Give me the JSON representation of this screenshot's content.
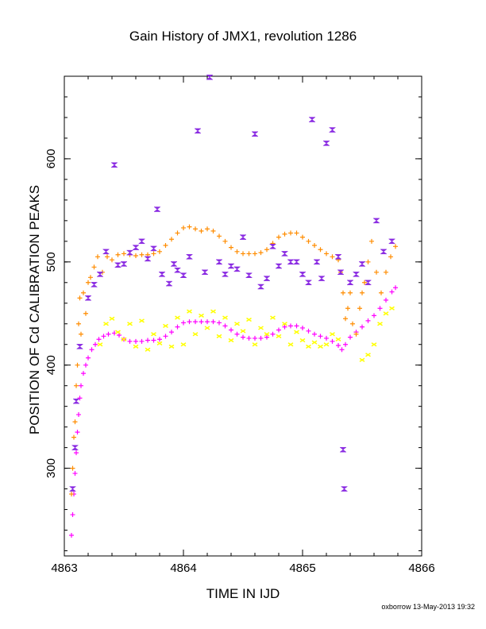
{
  "credit": "oxborrow 13-May-2013 19:32",
  "chart_data": {
    "type": "scatter",
    "title": "Gain History of JMX1, revolution 1286",
    "xlabel": "TIME IN IJD",
    "ylabel": "POSITION OF Cd CALIBRATION PEAKS",
    "xlim": [
      4863.0,
      4866.0
    ],
    "ylim": [
      215,
      680
    ],
    "xticks": [
      4863,
      4864,
      4865,
      4866
    ],
    "xtick_labels": [
      "4863",
      "4864",
      "4865",
      "4866"
    ],
    "yticks": [
      300,
      400,
      500,
      600
    ],
    "ytick_labels": [
      "300",
      "400",
      "500",
      "600"
    ],
    "series": [
      {
        "color": "#ff00ff",
        "marker": "plus",
        "points": [
          [
            4863.06,
            235
          ],
          [
            4863.07,
            255
          ],
          [
            4863.08,
            275
          ],
          [
            4863.09,
            295
          ],
          [
            4863.1,
            315
          ],
          [
            4863.11,
            335
          ],
          [
            4863.12,
            352
          ],
          [
            4863.13,
            368
          ],
          [
            4863.14,
            380
          ],
          [
            4863.16,
            392
          ],
          [
            4863.18,
            400
          ],
          [
            4863.2,
            407
          ],
          [
            4863.23,
            415
          ],
          [
            4863.26,
            420
          ],
          [
            4863.29,
            425
          ],
          [
            4863.33,
            428
          ],
          [
            4863.37,
            430
          ],
          [
            4863.42,
            431
          ],
          [
            4863.46,
            429
          ],
          [
            4863.5,
            425
          ],
          [
            4863.55,
            423
          ],
          [
            4863.6,
            423
          ],
          [
            4863.65,
            423
          ],
          [
            4863.7,
            424
          ],
          [
            4863.75,
            424
          ],
          [
            4863.8,
            425
          ],
          [
            4863.85,
            428
          ],
          [
            4863.9,
            432
          ],
          [
            4863.95,
            437
          ],
          [
            4864.0,
            441
          ],
          [
            4864.05,
            442
          ],
          [
            4864.1,
            442
          ],
          [
            4864.15,
            442
          ],
          [
            4864.2,
            442
          ],
          [
            4864.25,
            442
          ],
          [
            4864.3,
            441
          ],
          [
            4864.35,
            438
          ],
          [
            4864.4,
            434
          ],
          [
            4864.45,
            430
          ],
          [
            4864.5,
            427
          ],
          [
            4864.55,
            426
          ],
          [
            4864.6,
            426
          ],
          [
            4864.65,
            426
          ],
          [
            4864.7,
            427
          ],
          [
            4864.75,
            430
          ],
          [
            4864.8,
            434
          ],
          [
            4864.85,
            437
          ],
          [
            4864.9,
            438
          ],
          [
            4864.95,
            438
          ],
          [
            4865.0,
            436
          ],
          [
            4865.05,
            433
          ],
          [
            4865.1,
            430
          ],
          [
            4865.15,
            428
          ],
          [
            4865.2,
            426
          ],
          [
            4865.25,
            423
          ],
          [
            4865.3,
            419
          ],
          [
            4865.33,
            415
          ],
          [
            4865.36,
            420
          ],
          [
            4865.4,
            427
          ],
          [
            4865.45,
            432
          ],
          [
            4865.5,
            437
          ],
          [
            4865.55,
            443
          ],
          [
            4865.6,
            448
          ],
          [
            4865.65,
            455
          ],
          [
            4865.7,
            463
          ],
          [
            4865.75,
            471
          ],
          [
            4865.78,
            475
          ]
        ]
      },
      {
        "color": "#ff8c00",
        "marker": "plus",
        "points": [
          [
            4863.06,
            275
          ],
          [
            4863.07,
            300
          ],
          [
            4863.08,
            330
          ],
          [
            4863.09,
            345
          ],
          [
            4863.1,
            380
          ],
          [
            4863.11,
            400
          ],
          [
            4863.12,
            440
          ],
          [
            4863.13,
            465
          ],
          [
            4863.14,
            430
          ],
          [
            4863.16,
            470
          ],
          [
            4863.18,
            450
          ],
          [
            4863.2,
            480
          ],
          [
            4863.22,
            485
          ],
          [
            4863.25,
            495
          ],
          [
            4863.28,
            505
          ],
          [
            4863.32,
            490
          ],
          [
            4863.36,
            505
          ],
          [
            4863.4,
            502
          ],
          [
            4863.45,
            507
          ],
          [
            4863.5,
            508
          ],
          [
            4863.55,
            507
          ],
          [
            4863.6,
            506
          ],
          [
            4863.65,
            507
          ],
          [
            4863.7,
            507
          ],
          [
            4863.75,
            508
          ],
          [
            4863.8,
            510
          ],
          [
            4863.85,
            516
          ],
          [
            4863.9,
            522
          ],
          [
            4863.95,
            528
          ],
          [
            4864.0,
            533
          ],
          [
            4864.05,
            534
          ],
          [
            4864.1,
            532
          ],
          [
            4864.15,
            530
          ],
          [
            4864.2,
            532
          ],
          [
            4864.25,
            530
          ],
          [
            4864.3,
            525
          ],
          [
            4864.35,
            520
          ],
          [
            4864.4,
            514
          ],
          [
            4864.45,
            510
          ],
          [
            4864.5,
            508
          ],
          [
            4864.55,
            508
          ],
          [
            4864.6,
            508
          ],
          [
            4864.65,
            509
          ],
          [
            4864.7,
            512
          ],
          [
            4864.75,
            518
          ],
          [
            4864.8,
            524
          ],
          [
            4864.85,
            527
          ],
          [
            4864.9,
            528
          ],
          [
            4864.95,
            528
          ],
          [
            4865.0,
            524
          ],
          [
            4865.05,
            520
          ],
          [
            4865.1,
            516
          ],
          [
            4865.15,
            512
          ],
          [
            4865.2,
            508
          ],
          [
            4865.25,
            505
          ],
          [
            4865.3,
            502
          ],
          [
            4865.32,
            490
          ],
          [
            4865.34,
            470
          ],
          [
            4865.36,
            445
          ],
          [
            4865.38,
            455
          ],
          [
            4865.4,
            470
          ],
          [
            4865.42,
            440
          ],
          [
            4865.45,
            430
          ],
          [
            4865.48,
            455
          ],
          [
            4865.5,
            470
          ],
          [
            4865.52,
            480
          ],
          [
            4865.55,
            500
          ],
          [
            4865.58,
            520
          ],
          [
            4865.62,
            490
          ],
          [
            4865.66,
            470
          ],
          [
            4865.7,
            490
          ],
          [
            4865.74,
            505
          ],
          [
            4865.78,
            515
          ]
        ]
      },
      {
        "color": "#ffff00",
        "marker": "x",
        "points": [
          [
            4863.3,
            420
          ],
          [
            4863.35,
            440
          ],
          [
            4863.4,
            445
          ],
          [
            4863.45,
            432
          ],
          [
            4863.5,
            425
          ],
          [
            4863.55,
            440
          ],
          [
            4863.6,
            418
          ],
          [
            4863.65,
            443
          ],
          [
            4863.7,
            415
          ],
          [
            4863.75,
            430
          ],
          [
            4863.8,
            421
          ],
          [
            4863.85,
            438
          ],
          [
            4863.9,
            418
          ],
          [
            4863.95,
            446
          ],
          [
            4864.0,
            420
          ],
          [
            4864.05,
            452
          ],
          [
            4864.1,
            430
          ],
          [
            4864.15,
            448
          ],
          [
            4864.2,
            436
          ],
          [
            4864.25,
            452
          ],
          [
            4864.3,
            428
          ],
          [
            4864.35,
            446
          ],
          [
            4864.4,
            424
          ],
          [
            4864.45,
            440
          ],
          [
            4864.5,
            433
          ],
          [
            4864.55,
            444
          ],
          [
            4864.6,
            420
          ],
          [
            4864.65,
            436
          ],
          [
            4864.7,
            430
          ],
          [
            4864.75,
            446
          ],
          [
            4864.8,
            428
          ],
          [
            4864.85,
            440
          ],
          [
            4864.9,
            420
          ],
          [
            4864.95,
            432
          ],
          [
            4865.0,
            424
          ],
          [
            4865.05,
            418
          ],
          [
            4865.1,
            422
          ],
          [
            4865.15,
            418
          ],
          [
            4865.2,
            420
          ],
          [
            4865.25,
            430
          ],
          [
            4865.3,
            425
          ],
          [
            4865.5,
            405
          ],
          [
            4865.55,
            410
          ],
          [
            4865.6,
            420
          ],
          [
            4865.65,
            440
          ],
          [
            4865.7,
            450
          ],
          [
            4865.75,
            455
          ]
        ]
      },
      {
        "color": "#8a2be2",
        "marker": "bowtie",
        "points": [
          [
            4863.07,
            280
          ],
          [
            4863.09,
            320
          ],
          [
            4863.1,
            365
          ],
          [
            4863.13,
            418
          ],
          [
            4863.2,
            465
          ],
          [
            4863.25,
            478
          ],
          [
            4863.3,
            488
          ],
          [
            4863.35,
            510
          ],
          [
            4863.42,
            594
          ],
          [
            4863.45,
            497
          ],
          [
            4863.5,
            498
          ],
          [
            4863.55,
            509
          ],
          [
            4863.6,
            514
          ],
          [
            4863.65,
            520
          ],
          [
            4863.7,
            503
          ],
          [
            4863.75,
            513
          ],
          [
            4863.78,
            551
          ],
          [
            4863.82,
            488
          ],
          [
            4863.88,
            479
          ],
          [
            4863.92,
            498
          ],
          [
            4863.95,
            492
          ],
          [
            4864.0,
            487
          ],
          [
            4864.05,
            505
          ],
          [
            4864.12,
            627
          ],
          [
            4864.18,
            490
          ],
          [
            4864.22,
            679
          ],
          [
            4864.3,
            500
          ],
          [
            4864.35,
            488
          ],
          [
            4864.4,
            496
          ],
          [
            4864.45,
            493
          ],
          [
            4864.5,
            524
          ],
          [
            4864.55,
            487
          ],
          [
            4864.6,
            624
          ],
          [
            4864.65,
            476
          ],
          [
            4864.7,
            484
          ],
          [
            4864.75,
            515
          ],
          [
            4864.8,
            496
          ],
          [
            4864.85,
            508
          ],
          [
            4864.9,
            500
          ],
          [
            4864.95,
            500
          ],
          [
            4865.0,
            488
          ],
          [
            4865.05,
            480
          ],
          [
            4865.08,
            638
          ],
          [
            4865.12,
            500
          ],
          [
            4865.16,
            484
          ],
          [
            4865.2,
            615
          ],
          [
            4865.25,
            628
          ],
          [
            4865.3,
            505
          ],
          [
            4865.32,
            490
          ],
          [
            4865.34,
            318
          ],
          [
            4865.35,
            280
          ],
          [
            4865.4,
            480
          ],
          [
            4865.45,
            488
          ],
          [
            4865.5,
            498
          ],
          [
            4865.55,
            480
          ],
          [
            4865.62,
            540
          ],
          [
            4865.68,
            510
          ],
          [
            4865.75,
            520
          ]
        ]
      }
    ]
  }
}
